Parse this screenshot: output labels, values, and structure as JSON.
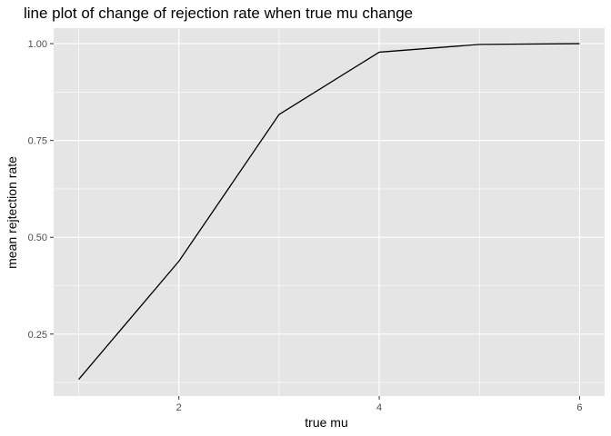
{
  "chart_data": {
    "type": "line",
    "title": "line plot of change of rejection rate when true mu change",
    "xlabel": "true mu",
    "ylabel": "mean rejtection rate",
    "x": [
      1,
      2,
      3,
      4,
      5,
      6
    ],
    "series": [
      {
        "values": [
          0.133,
          0.438,
          0.817,
          0.978,
          0.998,
          1.0
        ]
      }
    ],
    "xlim": [
      0.75,
      6.25
    ],
    "ylim": [
      0.09,
      1.04
    ],
    "xticks": [
      2,
      4,
      6
    ],
    "xtick_labels": [
      "2",
      "4",
      "6"
    ],
    "yticks": [
      0.25,
      0.5,
      0.75,
      1.0
    ],
    "ytick_labels": [
      "0.25",
      "0.50",
      "0.75",
      "1.00"
    ],
    "grid": true,
    "legend": "none"
  },
  "colors": {
    "panel_background": "#E5E5E5",
    "grid_major": "#FFFFFF",
    "line": "#000000",
    "tick_text": "#4D4D4D"
  }
}
